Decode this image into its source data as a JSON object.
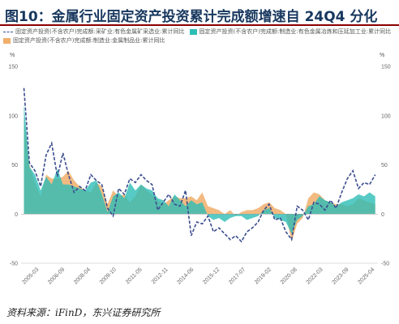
{
  "title": "图10：金属行业固定资产投资累计完成额增速自 24Q4 分化",
  "source": "资料来源：iFinD，东兴证券研究所",
  "chart_data": {
    "type": "area",
    "y_unit_left": "%",
    "y_unit_right": "%",
    "ylim": [
      -50,
      150
    ],
    "yticks": [
      -50,
      0,
      50,
      100,
      150
    ],
    "xlim": [
      2004.0,
      2025.33
    ],
    "x_ticks": [
      "2005-03",
      "2006-09",
      "2008-04",
      "2009-10",
      "2011-05",
      "2012-11",
      "2014-06",
      "2015-12",
      "2017-07",
      "2019-02",
      "2020-08",
      "2022-03",
      "2023-09",
      "2025-04"
    ],
    "grid": false,
    "legend_position": "top",
    "x": [
      2004.17,
      2004.5,
      2004.83,
      2005.17,
      2005.5,
      2005.83,
      2006.17,
      2006.5,
      2006.83,
      2007.17,
      2007.5,
      2007.83,
      2008.17,
      2008.5,
      2008.83,
      2009.17,
      2009.5,
      2009.83,
      2010.17,
      2010.5,
      2010.83,
      2011.17,
      2011.5,
      2011.83,
      2012.17,
      2012.5,
      2012.83,
      2013.17,
      2013.5,
      2013.83,
      2014.17,
      2014.5,
      2014.83,
      2015.17,
      2015.5,
      2015.83,
      2016.17,
      2016.5,
      2016.83,
      2017.17,
      2017.5,
      2017.83,
      2018.17,
      2018.5,
      2018.83,
      2019.17,
      2019.5,
      2019.83,
      2020.17,
      2020.5,
      2020.83,
      2021.17,
      2021.5,
      2021.83,
      2022.17,
      2022.5,
      2022.83,
      2023.17,
      2023.5,
      2023.83,
      2024.17,
      2024.5,
      2024.83,
      2025.17
    ],
    "series": [
      {
        "name": "固定资产投资(不含农户)完成额:采矿业:有色金属矿采选业:累计同比",
        "style": "dashed-line",
        "color": "#3b4d8f",
        "values": [
          128,
          52,
          44,
          28,
          60,
          72,
          38,
          62,
          40,
          22,
          28,
          24,
          40,
          34,
          30,
          6,
          -2,
          26,
          20,
          36,
          32,
          40,
          34,
          30,
          4,
          12,
          20,
          10,
          8,
          24,
          -22,
          -8,
          -10,
          -2,
          -18,
          -14,
          -20,
          -26,
          -22,
          -28,
          -18,
          -14,
          -8,
          4,
          10,
          -6,
          -4,
          -18,
          -26,
          8,
          4,
          -6,
          12,
          10,
          4,
          14,
          6,
          22,
          36,
          44,
          26,
          32,
          30,
          40
        ]
      },
      {
        "name": "固定资产投资(不含农户)完成额:制造业:有色金属冶炼和压延加工业:累计同比",
        "style": "area",
        "color": "#2dbdb6",
        "values": [
          112,
          48,
          40,
          24,
          38,
          30,
          46,
          30,
          30,
          28,
          26,
          24,
          32,
          34,
          20,
          2,
          18,
          22,
          16,
          32,
          24,
          30,
          26,
          24,
          16,
          14,
          8,
          20,
          14,
          8,
          14,
          10,
          12,
          -2,
          -6,
          -4,
          -8,
          -4,
          -2,
          -2,
          -6,
          -4,
          -2,
          4,
          6,
          -4,
          -6,
          -8,
          -20,
          -6,
          -2,
          8,
          10,
          18,
          14,
          12,
          8,
          12,
          14,
          16,
          20,
          18,
          22,
          18
        ]
      },
      {
        "name": "固定资产投资(不含农户)完成额:制造业:金属制品业:累计同比",
        "style": "area",
        "color": "#f0ae6b",
        "values": [
          98,
          50,
          32,
          18,
          40,
          36,
          36,
          38,
          44,
          34,
          28,
          24,
          22,
          32,
          28,
          10,
          24,
          18,
          20,
          12,
          18,
          30,
          24,
          20,
          14,
          10,
          14,
          18,
          16,
          16,
          18,
          14,
          22,
          8,
          6,
          4,
          0,
          4,
          -2,
          2,
          4,
          4,
          6,
          10,
          12,
          6,
          4,
          0,
          -28,
          -10,
          -4,
          16,
          22,
          20,
          14,
          12,
          10,
          10,
          8,
          10,
          16,
          14,
          12,
          10
        ]
      }
    ]
  }
}
